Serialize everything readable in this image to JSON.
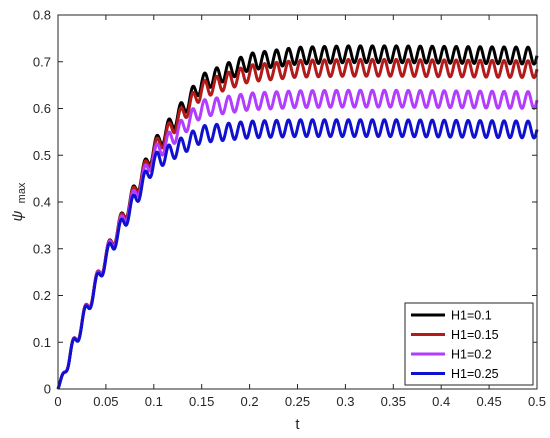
{
  "chart_data": {
    "type": "line",
    "xlabel": "t",
    "ylabel_symbol": "ψ",
    "ylabel_subscript": "max",
    "xlim": [
      0,
      0.5
    ],
    "ylim": [
      0,
      0.8
    ],
    "xticks": [
      "0",
      "0.05",
      "0.1",
      "0.15",
      "0.2",
      "0.25",
      "0.3",
      "0.35",
      "0.4",
      "0.45",
      "0.5"
    ],
    "yticks": [
      "0",
      "0.1",
      "0.2",
      "0.3",
      "0.4",
      "0.5",
      "0.6",
      "0.7",
      "0.8"
    ],
    "grid": false,
    "legend_position": "bottom-right",
    "oscillation": {
      "period": 0.0125,
      "amplitude": 0.018
    },
    "series": [
      {
        "name": "H1=0.1",
        "color": "#000000",
        "x": [
          0,
          0.05,
          0.1,
          0.15,
          0.2,
          0.25,
          0.3,
          0.35,
          0.4,
          0.45,
          0.5
        ],
        "mean": [
          0,
          0.285,
          0.515,
          0.655,
          0.7,
          0.713,
          0.716,
          0.716,
          0.715,
          0.714,
          0.713
        ]
      },
      {
        "name": "H1=0.15",
        "color": "#b31b1b",
        "x": [
          0,
          0.05,
          0.1,
          0.15,
          0.2,
          0.25,
          0.3,
          0.35,
          0.4,
          0.45,
          0.5
        ],
        "mean": [
          0,
          0.285,
          0.51,
          0.64,
          0.675,
          0.685,
          0.687,
          0.687,
          0.686,
          0.685,
          0.684
        ]
      },
      {
        "name": "H1=0.2",
        "color": "#b23cff",
        "x": [
          0,
          0.05,
          0.1,
          0.15,
          0.2,
          0.25,
          0.3,
          0.35,
          0.4,
          0.45,
          0.5
        ],
        "mean": [
          0,
          0.283,
          0.5,
          0.6,
          0.615,
          0.62,
          0.621,
          0.621,
          0.62,
          0.619,
          0.618
        ]
      },
      {
        "name": "H1=0.25",
        "color": "#1010d0",
        "x": [
          0,
          0.05,
          0.1,
          0.15,
          0.2,
          0.25,
          0.3,
          0.35,
          0.4,
          0.45,
          0.5
        ],
        "mean": [
          0,
          0.28,
          0.485,
          0.545,
          0.555,
          0.558,
          0.558,
          0.558,
          0.557,
          0.556,
          0.555
        ]
      }
    ]
  }
}
